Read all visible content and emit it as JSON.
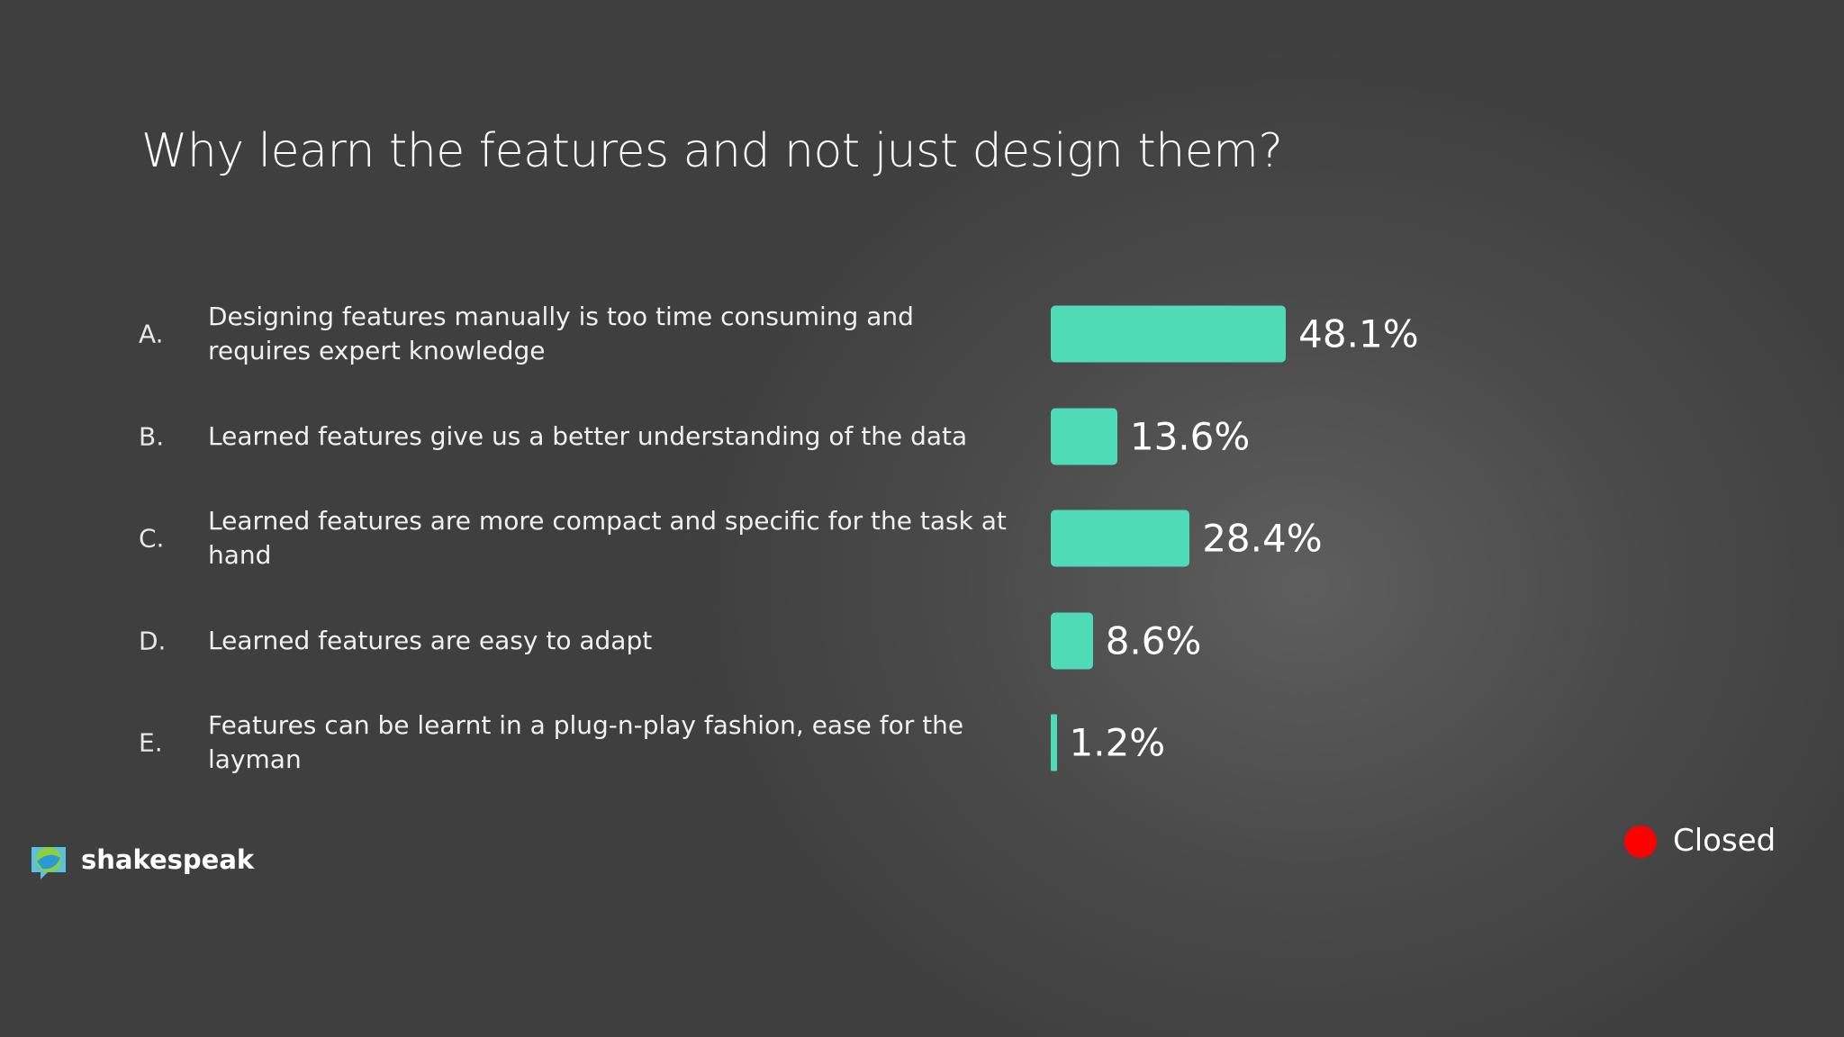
{
  "chart_data": {
    "type": "bar",
    "title": "Why learn the features and not just design them?",
    "letters": [
      "A.",
      "B.",
      "C.",
      "D.",
      "E."
    ],
    "categories": [
      "Designing features manually is too time consuming and requires expert knowledge",
      "Learned features give us a better understanding of the data",
      "Learned features are more compact and specific for the task at hand",
      "Learned features are easy to adapt",
      "Features can be learnt in a plug-n-play fashion, ease for the layman"
    ],
    "values": [
      48.1,
      13.6,
      28.4,
      8.6,
      1.2
    ],
    "value_labels": [
      "48.1%",
      "13.6%",
      "28.4%",
      "8.6%",
      "1.2%"
    ],
    "color": "#4fdbb5"
  },
  "brand": "shakespeak",
  "status": "Closed"
}
